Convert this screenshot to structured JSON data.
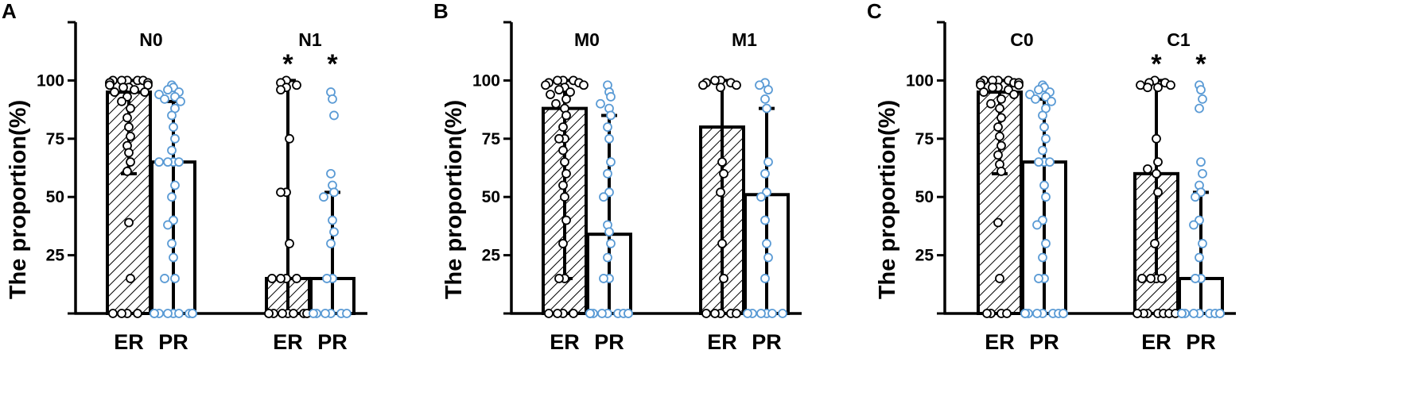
{
  "chart_data": [
    {
      "type": "bar",
      "panel": "A",
      "ylabel": "The proportion(%)",
      "yticks": [
        25,
        50,
        75,
        100
      ],
      "ylim": [
        0,
        125
      ],
      "groups": [
        {
          "name": "N0",
          "bars": [
            {
              "category": "ER",
              "value": 95,
              "error": [
                60,
                100
              ],
              "significance": "",
              "points": [
                100,
                100,
                100,
                100,
                100,
                99,
                99,
                99,
                98,
                98,
                97,
                97,
                96,
                95,
                95,
                93,
                91,
                88,
                84,
                80,
                76,
                72,
                69,
                65,
                61,
                39,
                15,
                0,
                0,
                0,
                0
              ]
            },
            {
              "category": "PR",
              "value": 65,
              "error": [
                0,
                91
              ],
              "significance": "",
              "points": [
                98,
                97,
                96,
                95,
                94,
                93,
                92,
                91,
                88,
                85,
                80,
                75,
                70,
                65,
                65,
                65,
                65,
                55,
                50,
                40,
                38,
                30,
                24,
                15,
                15,
                0,
                0,
                0,
                0,
                0,
                0,
                0,
                0,
                0,
                0,
                0
              ]
            }
          ]
        },
        {
          "name": "N1",
          "bars": [
            {
              "category": "ER",
              "value": 15,
              "error": [
                0,
                100
              ],
              "significance": "*",
              "points": [
                100,
                99,
                98,
                97,
                96,
                75,
                52,
                52,
                30,
                15,
                15,
                15,
                15,
                0,
                0,
                0,
                0,
                0,
                0,
                0,
                0
              ]
            },
            {
              "category": "PR",
              "value": 15,
              "error": [
                0,
                52
              ],
              "significance": "*",
              "points": [
                95,
                92,
                85,
                60,
                55,
                52,
                50,
                40,
                35,
                30,
                15,
                15,
                0,
                0,
                0,
                0,
                0,
                0
              ]
            }
          ]
        }
      ]
    },
    {
      "type": "bar",
      "panel": "B",
      "ylabel": "The proportion(%)",
      "yticks": [
        25,
        50,
        75,
        100
      ],
      "ylim": [
        0,
        125
      ],
      "groups": [
        {
          "name": "M0",
          "bars": [
            {
              "category": "ER",
              "value": 88,
              "error": [
                15,
                100
              ],
              "significance": "",
              "points": [
                100,
                100,
                100,
                99,
                99,
                98,
                98,
                97,
                96,
                95,
                94,
                92,
                90,
                88,
                85,
                80,
                75,
                75,
                70,
                65,
                60,
                55,
                50,
                40,
                30,
                15,
                15,
                0,
                0,
                0,
                0
              ]
            },
            {
              "category": "PR",
              "value": 34,
              "error": [
                0,
                85
              ],
              "significance": "",
              "points": [
                98,
                95,
                93,
                90,
                88,
                85,
                80,
                75,
                65,
                60,
                52,
                50,
                38,
                35,
                30,
                24,
                15,
                15,
                0,
                0,
                0,
                0,
                0,
                0,
                0,
                0,
                0,
                0
              ]
            }
          ]
        },
        {
          "name": "M1",
          "bars": [
            {
              "category": "ER",
              "value": 80,
              "error": [
                0,
                100
              ],
              "significance": "",
              "points": [
                100,
                100,
                99,
                99,
                98,
                98,
                97,
                65,
                60,
                52,
                30,
                15,
                0,
                0,
                0,
                0,
                0
              ]
            },
            {
              "category": "PR",
              "value": 51,
              "error": [
                0,
                88
              ],
              "significance": "",
              "points": [
                99,
                98,
                96,
                92,
                88,
                65,
                60,
                52,
                50,
                40,
                30,
                24,
                15,
                0,
                0,
                0,
                0,
                0,
                0
              ]
            }
          ]
        }
      ]
    },
    {
      "type": "bar",
      "panel": "C",
      "ylabel": "The proportion(%)",
      "yticks": [
        25,
        50,
        75,
        100
      ],
      "ylim": [
        0,
        125
      ],
      "groups": [
        {
          "name": "C0",
          "bars": [
            {
              "category": "ER",
              "value": 95,
              "error": [
                60,
                100
              ],
              "significance": "",
              "points": [
                100,
                100,
                100,
                100,
                99,
                99,
                99,
                98,
                98,
                97,
                97,
                96,
                95,
                94,
                92,
                90,
                88,
                84,
                80,
                76,
                72,
                68,
                64,
                61,
                39,
                15,
                0,
                0,
                0,
                0
              ]
            },
            {
              "category": "PR",
              "value": 65,
              "error": [
                0,
                92
              ],
              "significance": "",
              "points": [
                98,
                97,
                96,
                95,
                94,
                93,
                92,
                91,
                88,
                85,
                80,
                75,
                70,
                65,
                65,
                65,
                55,
                50,
                40,
                38,
                30,
                24,
                15,
                15,
                0,
                0,
                0,
                0,
                0,
                0,
                0,
                0,
                0,
                0
              ]
            }
          ]
        },
        {
          "name": "C1",
          "bars": [
            {
              "category": "ER",
              "value": 60,
              "error": [
                15,
                100
              ],
              "significance": "*",
              "points": [
                100,
                99,
                99,
                98,
                98,
                97,
                97,
                75,
                65,
                62,
                60,
                52,
                30,
                15,
                15,
                15,
                15,
                0,
                0,
                0,
                0,
                0,
                0,
                0,
                0
              ]
            },
            {
              "category": "PR",
              "value": 15,
              "error": [
                0,
                52
              ],
              "significance": "*",
              "points": [
                98,
                96,
                92,
                88,
                65,
                60,
                55,
                52,
                50,
                40,
                38,
                30,
                24,
                15,
                15,
                0,
                0,
                0,
                0,
                0,
                0,
                0,
                0,
                0,
                0
              ]
            }
          ]
        }
      ]
    }
  ],
  "colors": {
    "er_point_fill": "#ffffff",
    "er_point_stroke": "#000000",
    "pr_point_stroke": "#5b9bd5",
    "axis": "#000000"
  },
  "bar_patterns": {
    "ER": "hatched",
    "PR": "open"
  }
}
